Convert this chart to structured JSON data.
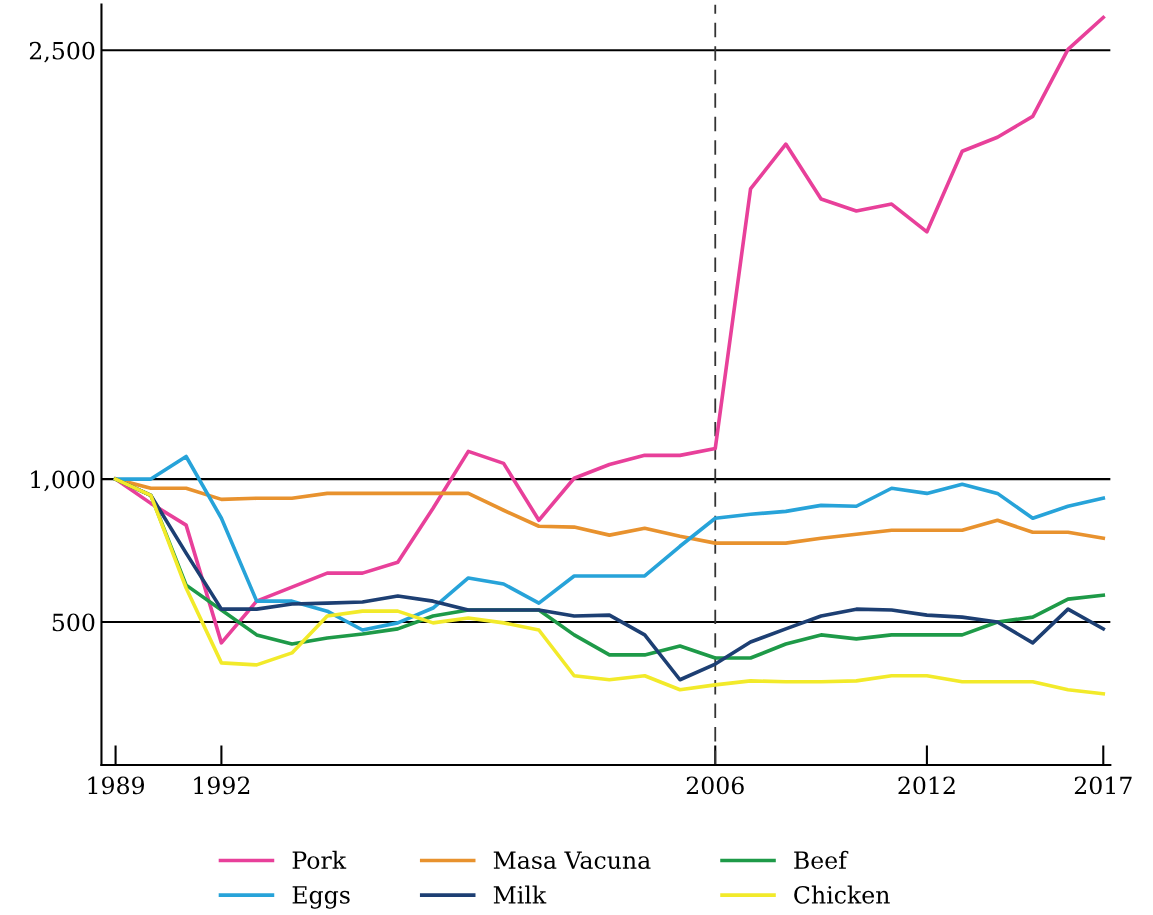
{
  "chart_data": {
    "type": "line",
    "x": [
      1989,
      1990,
      1991,
      1992,
      1993,
      1994,
      1995,
      1996,
      1997,
      1998,
      1999,
      2000,
      2001,
      2002,
      2003,
      2004,
      2005,
      2006,
      2007,
      2008,
      2009,
      2010,
      2011,
      2012,
      2013,
      2014,
      2015,
      2016,
      2017
    ],
    "series": [
      {
        "name": "Pork",
        "color": "#e8409a",
        "values": [
          1000,
          915,
          839,
          427,
          573,
          622,
          671,
          671,
          709,
          898,
          1097,
          1055,
          856,
          1003,
          1051,
          1083,
          1083,
          1107,
          2015,
          2172,
          1980,
          1938,
          1962,
          1865,
          2147,
          2196,
          2269,
          2503,
          2615
        ]
      },
      {
        "name": "Masa Vacuna",
        "color": "#e8922e",
        "values": [
          1000,
          968,
          968,
          929,
          933,
          933,
          950,
          950,
          950,
          950,
          950,
          891,
          835,
          832,
          804,
          828,
          800,
          776,
          776,
          776,
          793,
          807,
          821,
          821,
          821,
          856,
          814,
          814,
          793
        ]
      },
      {
        "name": "Beef",
        "color": "#1e9a48",
        "values": [
          1000,
          943,
          629,
          542,
          455,
          423,
          444,
          458,
          476,
          521,
          542,
          542,
          542,
          455,
          385,
          385,
          416,
          374,
          374,
          423,
          455,
          441,
          455,
          455,
          455,
          500,
          517,
          580,
          594
        ]
      },
      {
        "name": "Eggs",
        "color": "#27a3d9",
        "values": [
          1000,
          1000,
          1079,
          863,
          573,
          573,
          538,
          472,
          497,
          549,
          654,
          633,
          566,
          661,
          661,
          661,
          765,
          863,
          877,
          887,
          908,
          905,
          968,
          950,
          982,
          950,
          863,
          905,
          933
        ]
      },
      {
        "name": "Milk",
        "color": "#1d3f73",
        "values": [
          1000,
          943,
          741,
          545,
          545,
          563,
          566,
          570,
          591,
          573,
          542,
          542,
          542,
          521,
          524,
          455,
          298,
          353,
          430,
          476,
          521,
          545,
          542,
          524,
          517,
          500,
          427,
          545,
          476
        ]
      },
      {
        "name": "Chicken",
        "color": "#f2ea2a",
        "values": [
          1000,
          943,
          619,
          357,
          350,
          392,
          521,
          538,
          538,
          497,
          514,
          497,
          472,
          312,
          298,
          312,
          263,
          280,
          294,
          291,
          291,
          294,
          312,
          312,
          291,
          291,
          291,
          263,
          249
        ]
      }
    ],
    "xlim": [
      1988.6,
      2017.2
    ],
    "xticks": [
      1989,
      1992,
      2006,
      2012,
      2017
    ],
    "ylim": [
      0,
      2660
    ],
    "yticks": [
      {
        "value": 500,
        "label": "500"
      },
      {
        "value": 1000,
        "label": "1,000"
      },
      {
        "value": 2500,
        "label": "2,500"
      }
    ],
    "grid": "y",
    "legend": "bottom",
    "line_style": "solid",
    "marker": "none",
    "ref_lines": [
      {
        "axis": "x",
        "value": 2006,
        "label": null,
        "color": "#333333",
        "line_style": "dashed"
      }
    ]
  }
}
